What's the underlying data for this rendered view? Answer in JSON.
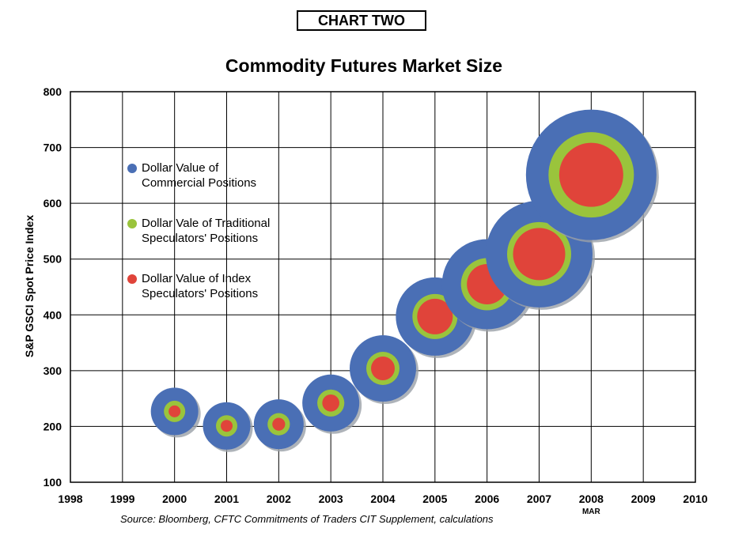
{
  "header_box": "CHART TWO",
  "source_note": "Source: Bloomberg, CFTC Commitments of Traders CIT Supplement, calculations",
  "legend": [
    {
      "lines": [
        "Dollar Value of",
        "Commercial Positions"
      ],
      "color": "#4a6fb5"
    },
    {
      "lines": [
        "Dollar Vale of Traditional",
        "Speculators' Positions"
      ],
      "color": "#9ac43c"
    },
    {
      "lines": [
        "Dollar Value of Index",
        "Speculators' Positions"
      ],
      "color": "#e0443a"
    }
  ],
  "chart_data": {
    "type": "scatter",
    "title": "Commodity Futures Market Size",
    "xlabel": "",
    "ylabel": "S&P GSCI Spot Price Index",
    "xlim": [
      1998,
      2010
    ],
    "ylim": [
      100,
      800
    ],
    "xticks": [
      1998,
      1999,
      2000,
      2001,
      2002,
      2003,
      2004,
      2005,
      2006,
      2007,
      2008,
      2009,
      2010
    ],
    "yticks": [
      100,
      200,
      300,
      400,
      500,
      600,
      700,
      800
    ],
    "annotation": {
      "x": 2008,
      "text": "MAR"
    },
    "grid": true,
    "colors": {
      "commercial": "#4a6fb5",
      "traditional": "#9ac43c",
      "index": "#e0443a"
    },
    "points": [
      {
        "x": 2000,
        "y": 227,
        "commercial": 1.0,
        "traditional": 0.45,
        "index": 0.25
      },
      {
        "x": 2001,
        "y": 201,
        "commercial": 1.0,
        "traditional": 0.45,
        "index": 0.25
      },
      {
        "x": 2002,
        "y": 204,
        "commercial": 1.05,
        "traditional": 0.47,
        "index": 0.27
      },
      {
        "x": 2003,
        "y": 242,
        "commercial": 1.2,
        "traditional": 0.57,
        "index": 0.36
      },
      {
        "x": 2004,
        "y": 304,
        "commercial": 1.4,
        "traditional": 0.7,
        "index": 0.5
      },
      {
        "x": 2005,
        "y": 397,
        "commercial": 1.65,
        "traditional": 0.95,
        "index": 0.75
      },
      {
        "x": 2006,
        "y": 455,
        "commercial": 1.9,
        "traditional": 1.1,
        "index": 0.85
      },
      {
        "x": 2007,
        "y": 509,
        "commercial": 2.25,
        "traditional": 1.35,
        "index": 1.1
      },
      {
        "x": 2008,
        "y": 651,
        "commercial": 2.75,
        "traditional": 1.8,
        "index": 1.35
      }
    ]
  }
}
